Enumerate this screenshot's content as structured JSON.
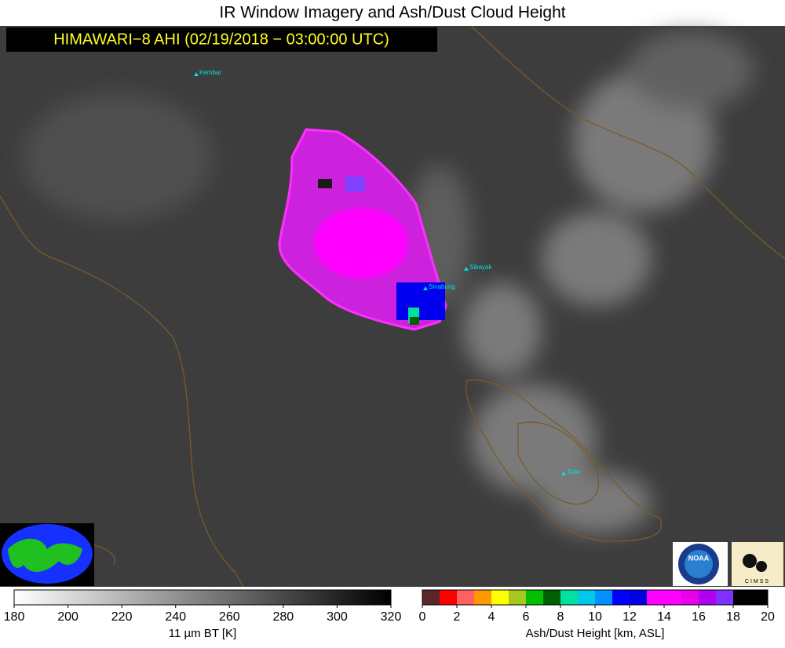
{
  "header": {
    "title": "IR Window Imagery and Ash/Dust Cloud Height",
    "subtitle": "HIMAWARI−8 AHI (02/19/2018 − 03:00:00 UTC)"
  },
  "places": [
    "Kembar",
    "Sibayak",
    "Sinabung",
    "Toba"
  ],
  "logos": {
    "noaa": "NOAA",
    "cimss": "CIMSS"
  },
  "colorbars": [
    {
      "label": "11 µm BT [K]",
      "lim": [
        180,
        320
      ],
      "ticks": [
        180,
        200,
        220,
        240,
        260,
        280,
        300,
        320
      ],
      "colors": [
        "#ffffff",
        "#000000"
      ]
    },
    {
      "label": "Ash/Dust Height [km, ASL]",
      "lim": [
        0,
        20
      ],
      "ticks": [
        0,
        2,
        4,
        6,
        8,
        10,
        12,
        14,
        16,
        18,
        20
      ],
      "colors": [
        "#5a2626",
        "#ff0000",
        "#ff6060",
        "#ff9900",
        "#ffff00",
        "#a8c820",
        "#00c000",
        "#006000",
        "#00e0a0",
        "#00c8e8",
        "#0090ff",
        "#0000ff",
        "#0000e0",
        "#ff00ff",
        "#ff00ff",
        "#e800e8",
        "#b000f0",
        "#8030ff",
        "#000000",
        "#000000"
      ]
    }
  ]
}
